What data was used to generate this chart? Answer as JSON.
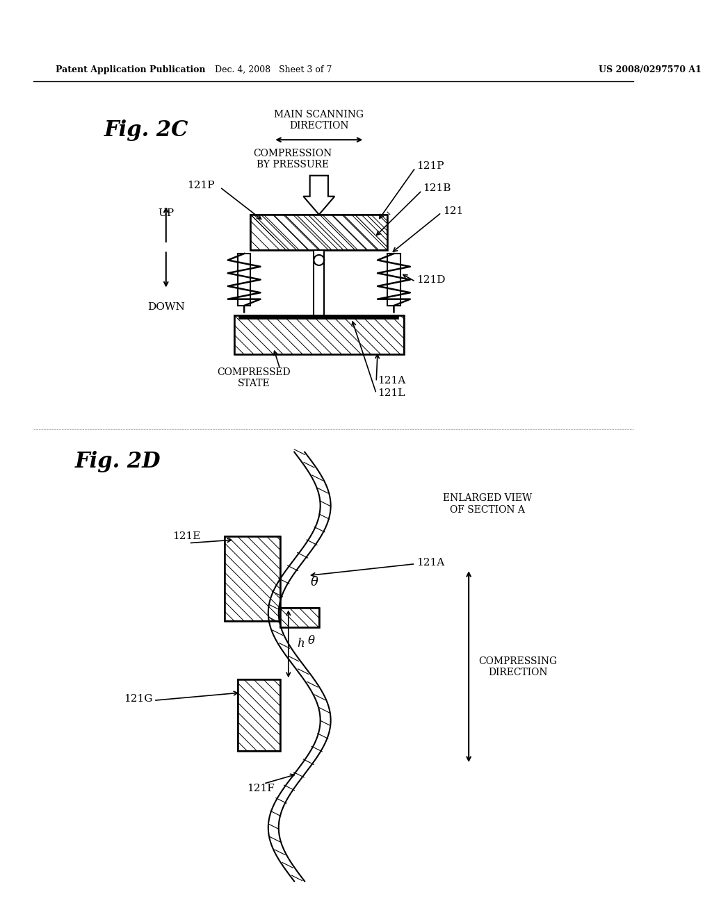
{
  "header_left": "Patent Application Publication",
  "header_mid": "Dec. 4, 2008   Sheet 3 of 7",
  "header_right": "US 2008/0297570 A1",
  "fig2c_label": "Fig. 2C",
  "fig2d_label": "Fig. 2D",
  "bg_color": "#ffffff",
  "line_color": "#000000",
  "hatch_color": "#000000",
  "labels_2c": {
    "main_scanning": "MAIN SCANNING\nDIRECTION",
    "compression": "COMPRESSION\nBY PRESSURE",
    "compressed_state": "COMPRESSED\nSTATE",
    "121P_left": "121P",
    "121P_right": "121P",
    "121B": "121B",
    "121": "121",
    "121D": "121D",
    "121A": "121A",
    "121L": "121L",
    "UP": "UP",
    "DOWN": "DOWN"
  },
  "labels_2d": {
    "enlarged_view": "ENLARGED VIEW\nOF SECTION A",
    "121E": "121E",
    "121A": "121A",
    "121G": "121G",
    "121F": "121F",
    "compressing_direction": "COMPRESSING\nDIRECTION",
    "theta_upper": "θ",
    "theta_lower": "θ",
    "h": "h"
  }
}
